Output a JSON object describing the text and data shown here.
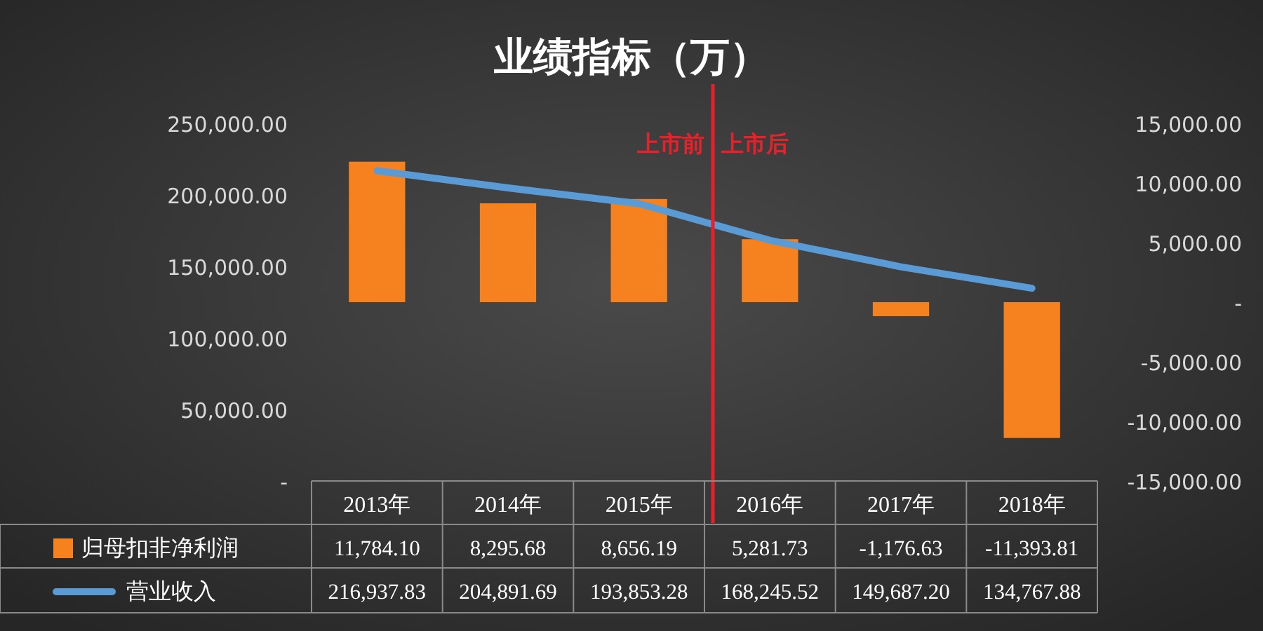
{
  "chart_data": {
    "type": "bar",
    "title": "业绩指标（万）",
    "categories": [
      "2013年",
      "2014年",
      "2015年",
      "2016年",
      "2017年",
      "2018年"
    ],
    "series": [
      {
        "name": "归母扣非净利润",
        "axis": "y2",
        "color": "#f5821f",
        "values": [
          11784.1,
          8295.68,
          8656.19,
          5281.73,
          -1176.63,
          -11393.81
        ],
        "value_labels": [
          "11,784.10",
          "8,295.68",
          "8,656.19",
          "5,281.73",
          "-1,176.63",
          "-11,393.81"
        ]
      },
      {
        "name": "营业收入",
        "type": "line",
        "color": "#5b9bd5",
        "values": [
          216937.83,
          204891.69,
          193853.28,
          168245.52,
          149687.2,
          134767.88
        ],
        "value_labels": [
          "216,937.83",
          "204,891.69",
          "193,853.28",
          "168,245.52",
          "149,687.20",
          "134,767.88"
        ]
      }
    ],
    "ylim": [
      0,
      250000
    ],
    "yticks": [
      {
        "value": 0,
        "label": "-"
      },
      {
        "value": 50000,
        "label": "50,000.00"
      },
      {
        "value": 100000,
        "label": "100,000.00"
      },
      {
        "value": 150000,
        "label": "150,000.00"
      },
      {
        "value": 200000,
        "label": "200,000.00"
      },
      {
        "value": 250000,
        "label": "250,000.00"
      }
    ],
    "y2lim": [
      -15000,
      15000
    ],
    "y2ticks": [
      {
        "value": -15000,
        "label": "-15,000.00"
      },
      {
        "value": -10000,
        "label": "-10,000.00"
      },
      {
        "value": -5000,
        "label": "-5,000.00"
      },
      {
        "value": 0,
        "label": "-"
      },
      {
        "value": 5000,
        "label": "5,000.00"
      },
      {
        "value": 10000,
        "label": "10,000.00"
      },
      {
        "value": 15000,
        "label": "15,000.00"
      }
    ],
    "legend": "bottom",
    "grid": false,
    "marker": "none",
    "ref_lines": [
      {
        "axis": "x",
        "value": "2016年",
        "color": "#e8202a"
      }
    ],
    "annotations": [
      "上市前",
      "上市后"
    ]
  }
}
